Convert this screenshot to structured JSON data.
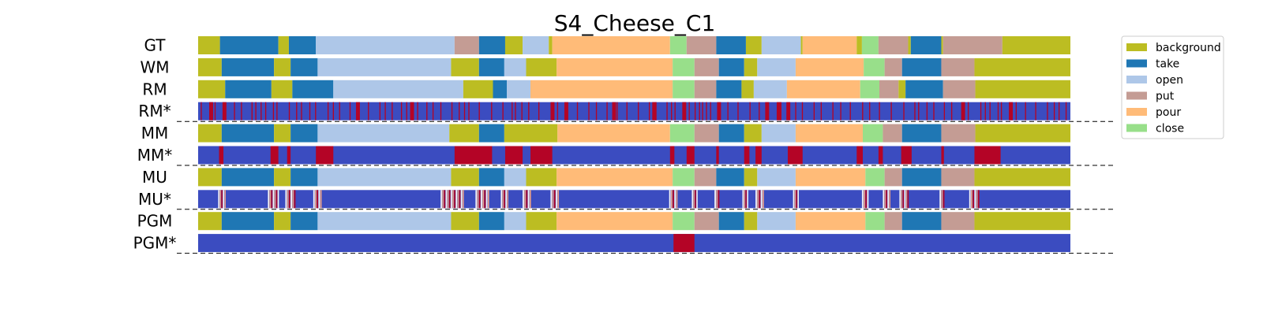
{
  "chart_data": {
    "type": "heatmap",
    "title": "S4_Cheese_C1",
    "x_range": [
      0,
      100
    ],
    "rows": [
      {
        "label": "GT",
        "kind": "segments",
        "segments": [
          [
            "background",
            0,
            2.5
          ],
          [
            "take",
            2.5,
            9.2
          ],
          [
            "background",
            9.2,
            10.4
          ],
          [
            "take",
            10.4,
            13.5
          ],
          [
            "open",
            13.5,
            29.4
          ],
          [
            "put",
            29.4,
            32.2
          ],
          [
            "take",
            32.2,
            35.2
          ],
          [
            "background",
            35.2,
            37.2
          ],
          [
            "open",
            37.2,
            40.2
          ],
          [
            "background",
            40.2,
            40.6
          ],
          [
            "pour",
            40.6,
            54.1
          ],
          [
            "close",
            54.1,
            56.0
          ],
          [
            "put",
            56.0,
            59.4
          ],
          [
            "take",
            59.4,
            62.8
          ],
          [
            "background",
            62.8,
            64.6
          ],
          [
            "open",
            64.6,
            69.1
          ],
          [
            "background",
            69.1,
            69.3
          ],
          [
            "pour",
            69.3,
            75.5
          ],
          [
            "background",
            75.5,
            76.1
          ],
          [
            "close",
            76.1,
            78.0
          ],
          [
            "put",
            78.0,
            81.4
          ],
          [
            "background",
            81.4,
            81.7
          ],
          [
            "take",
            81.7,
            85.2
          ],
          [
            "background",
            85.2,
            85.4
          ],
          [
            "put",
            85.4,
            92.2
          ],
          [
            "background",
            92.2,
            100
          ]
        ]
      },
      {
        "label": "WM",
        "kind": "segments",
        "segments": [
          [
            "background",
            0,
            2.7
          ],
          [
            "take",
            2.7,
            8.7
          ],
          [
            "background",
            8.7,
            10.6
          ],
          [
            "take",
            10.6,
            13.7
          ],
          [
            "open",
            13.7,
            29.0
          ],
          [
            "background",
            29.0,
            32.2
          ],
          [
            "take",
            32.2,
            35.1
          ],
          [
            "open",
            35.1,
            37.6
          ],
          [
            "background",
            37.6,
            41.1
          ],
          [
            "pour",
            41.1,
            54.4
          ],
          [
            "close",
            54.4,
            56.9
          ],
          [
            "put",
            56.9,
            59.7
          ],
          [
            "take",
            59.7,
            62.6
          ],
          [
            "background",
            62.6,
            64.1
          ],
          [
            "open",
            64.1,
            68.5
          ],
          [
            "pour",
            68.5,
            76.3
          ],
          [
            "close",
            76.3,
            78.7
          ],
          [
            "put",
            78.7,
            80.7
          ],
          [
            "take",
            80.7,
            85.2
          ],
          [
            "put",
            85.2,
            89.0
          ],
          [
            "background",
            89.0,
            100
          ]
        ]
      },
      {
        "label": "RM",
        "kind": "segments",
        "segments": [
          [
            "background",
            0,
            3.1
          ],
          [
            "take",
            3.1,
            8.4
          ],
          [
            "background",
            8.4,
            10.8
          ],
          [
            "take",
            10.8,
            15.5
          ],
          [
            "open",
            15.5,
            30.4
          ],
          [
            "background",
            30.4,
            33.8
          ],
          [
            "take",
            33.8,
            35.4
          ],
          [
            "open",
            35.4,
            38.1
          ],
          [
            "pour",
            38.1,
            54.4
          ],
          [
            "close",
            54.4,
            56.9
          ],
          [
            "put",
            56.9,
            59.4
          ],
          [
            "take",
            59.4,
            62.3
          ],
          [
            "background",
            62.3,
            63.7
          ],
          [
            "open",
            63.7,
            67.5
          ],
          [
            "pour",
            67.5,
            75.9
          ],
          [
            "close",
            75.9,
            78.1
          ],
          [
            "put",
            78.1,
            80.3
          ],
          [
            "background",
            80.3,
            81.1
          ],
          [
            "take",
            81.1,
            85.4
          ],
          [
            "put",
            85.4,
            89.1
          ],
          [
            "background",
            89.1,
            100
          ]
        ]
      },
      {
        "label": "RM*",
        "kind": "ticks",
        "density": "high"
      },
      {
        "label": "MM",
        "kind": "segments",
        "segments": [
          [
            "background",
            0,
            2.7
          ],
          [
            "take",
            2.7,
            8.7
          ],
          [
            "background",
            8.7,
            10.6
          ],
          [
            "take",
            10.6,
            13.7
          ],
          [
            "open",
            13.7,
            28.8
          ],
          [
            "background",
            28.8,
            32.2
          ],
          [
            "take",
            32.2,
            35.1
          ],
          [
            "background",
            35.1,
            41.2
          ],
          [
            "pour",
            41.2,
            54.1
          ],
          [
            "close",
            54.1,
            56.9
          ],
          [
            "put",
            56.9,
            59.7
          ],
          [
            "take",
            59.7,
            62.6
          ],
          [
            "background",
            62.6,
            64.6
          ],
          [
            "open",
            64.6,
            68.5
          ],
          [
            "pour",
            68.5,
            76.2
          ],
          [
            "close",
            76.2,
            78.5
          ],
          [
            "put",
            78.5,
            80.7
          ],
          [
            "take",
            80.7,
            85.2
          ],
          [
            "put",
            85.2,
            89.1
          ],
          [
            "background",
            89.1,
            100
          ]
        ]
      },
      {
        "label": "MM*",
        "kind": "errors",
        "ranges": [
          [
            2.4,
            2.9
          ],
          [
            8.3,
            9.2
          ],
          [
            10.2,
            10.6
          ],
          [
            13.5,
            15.5
          ],
          [
            29.4,
            33.7
          ],
          [
            35.2,
            37.2
          ],
          [
            38.1,
            40.6
          ],
          [
            54.1,
            54.6
          ],
          [
            56.0,
            56.9
          ],
          [
            59.4,
            59.7
          ],
          [
            62.6,
            63.2
          ],
          [
            63.9,
            64.6
          ],
          [
            67.6,
            69.3
          ],
          [
            75.5,
            76.2
          ],
          [
            78.0,
            78.5
          ],
          [
            80.6,
            81.8
          ],
          [
            85.2,
            85.5
          ],
          [
            89.0,
            92.0
          ]
        ]
      },
      {
        "label": "MU",
        "kind": "segments",
        "segments": [
          [
            "background",
            0,
            2.7
          ],
          [
            "take",
            2.7,
            8.7
          ],
          [
            "background",
            8.7,
            10.6
          ],
          [
            "take",
            10.6,
            13.7
          ],
          [
            "open",
            13.7,
            29.0
          ],
          [
            "background",
            29.0,
            32.2
          ],
          [
            "take",
            32.2,
            35.1
          ],
          [
            "open",
            35.1,
            37.6
          ],
          [
            "background",
            37.6,
            41.1
          ],
          [
            "pour",
            41.1,
            54.4
          ],
          [
            "close",
            54.4,
            56.9
          ],
          [
            "put",
            56.9,
            59.4
          ],
          [
            "take",
            59.4,
            62.6
          ],
          [
            "background",
            62.6,
            64.1
          ],
          [
            "open",
            64.1,
            68.5
          ],
          [
            "pour",
            68.5,
            76.5
          ],
          [
            "close",
            76.5,
            78.7
          ],
          [
            "put",
            78.7,
            80.7
          ],
          [
            "take",
            80.7,
            85.2
          ],
          [
            "put",
            85.2,
            89.0
          ],
          [
            "background",
            89.0,
            100
          ]
        ]
      },
      {
        "label": "MU*",
        "kind": "soft",
        "ranges": [
          [
            2.3,
            3.2
          ],
          [
            8.0,
            9.3
          ],
          [
            10.0,
            11.2
          ],
          [
            13.2,
            14.2
          ],
          [
            27.8,
            30.5
          ],
          [
            31.8,
            33.4
          ],
          [
            34.7,
            35.6
          ],
          [
            37.2,
            38.2
          ],
          [
            40.4,
            41.4
          ],
          [
            54.0,
            55.0
          ],
          [
            56.6,
            57.3
          ],
          [
            59.2,
            59.8
          ],
          [
            62.4,
            63.1
          ],
          [
            63.9,
            64.9
          ],
          [
            68.2,
            68.9
          ],
          [
            76.1,
            76.9
          ],
          [
            78.5,
            79.4
          ],
          [
            80.4,
            81.5
          ],
          [
            85.0,
            85.6
          ],
          [
            88.4,
            89.6
          ]
        ]
      },
      {
        "label": "PGM",
        "kind": "segments",
        "segments": [
          [
            "background",
            0,
            2.7
          ],
          [
            "take",
            2.7,
            8.7
          ],
          [
            "background",
            8.7,
            10.6
          ],
          [
            "take",
            10.6,
            13.7
          ],
          [
            "open",
            13.7,
            29.0
          ],
          [
            "background",
            29.0,
            32.2
          ],
          [
            "take",
            32.2,
            35.1
          ],
          [
            "open",
            35.1,
            37.6
          ],
          [
            "background",
            37.6,
            41.1
          ],
          [
            "pour",
            41.1,
            54.4
          ],
          [
            "close",
            54.4,
            56.9
          ],
          [
            "put",
            56.9,
            59.7
          ],
          [
            "take",
            59.7,
            62.6
          ],
          [
            "background",
            62.6,
            64.1
          ],
          [
            "open",
            64.1,
            68.5
          ],
          [
            "pour",
            68.5,
            76.5
          ],
          [
            "close",
            76.5,
            78.7
          ],
          [
            "put",
            78.7,
            80.7
          ],
          [
            "take",
            80.7,
            85.2
          ],
          [
            "put",
            85.2,
            89.0
          ],
          [
            "background",
            89.0,
            100
          ]
        ]
      },
      {
        "label": "PGM*",
        "kind": "errors",
        "ranges": [
          [
            54.5,
            56.9
          ]
        ]
      }
    ],
    "legend": {
      "placement": "top-right",
      "entries": [
        {
          "name": "background",
          "color": "#bcbd22"
        },
        {
          "name": "take",
          "color": "#1f77b4"
        },
        {
          "name": "open",
          "color": "#aec7e8"
        },
        {
          "name": "put",
          "color": "#c49c94"
        },
        {
          "name": "pour",
          "color": "#ffbb78"
        },
        {
          "name": "close",
          "color": "#98df8a"
        }
      ]
    },
    "error_colors": {
      "base": "#3b4cc0",
      "error": "#b40426"
    },
    "dashed_separators_after": [
      "RM*",
      "MM*",
      "MU*",
      "PGM*"
    ]
  }
}
